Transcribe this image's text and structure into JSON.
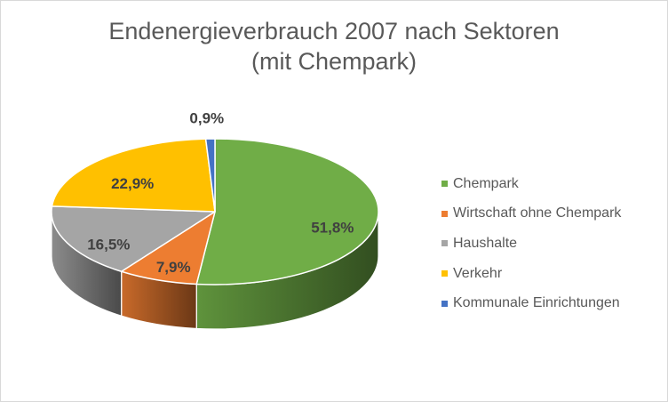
{
  "chart_data": {
    "type": "pie",
    "title": "Endenergieverbrauch 2007 nach Sektoren",
    "subtitle": "(mit Chempark)",
    "pie_style": "3d",
    "legend_position": "right",
    "series": [
      {
        "name": "Chempark",
        "value": 51.8,
        "label": "51,8%",
        "color": "#70ad47"
      },
      {
        "name": "Wirtschaft ohne Chempark",
        "value": 7.9,
        "label": "7,9%",
        "color": "#ed7d31"
      },
      {
        "name": "Haushalte",
        "value": 16.5,
        "label": "16,5%",
        "color": "#a5a5a5"
      },
      {
        "name": "Verkehr",
        "value": 22.9,
        "label": "22,9%",
        "color": "#ffc000"
      },
      {
        "name": "Kommunale Einrichtungen",
        "value": 0.9,
        "label": "0,9%",
        "color": "#4472c4"
      }
    ]
  }
}
